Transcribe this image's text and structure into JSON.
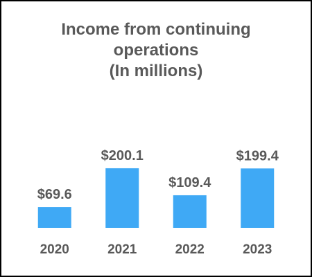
{
  "chart_data": {
    "type": "bar",
    "title": "Income from continuing operations",
    "subtitle": "(In millions)",
    "categories": [
      "2020",
      "2021",
      "2022",
      "2023"
    ],
    "values": [
      69.6,
      200.1,
      109.4,
      199.4
    ],
    "value_labels": [
      "$69.6",
      "$200.1",
      "$109.4",
      "$199.4"
    ],
    "color": "#3fa9f5"
  }
}
